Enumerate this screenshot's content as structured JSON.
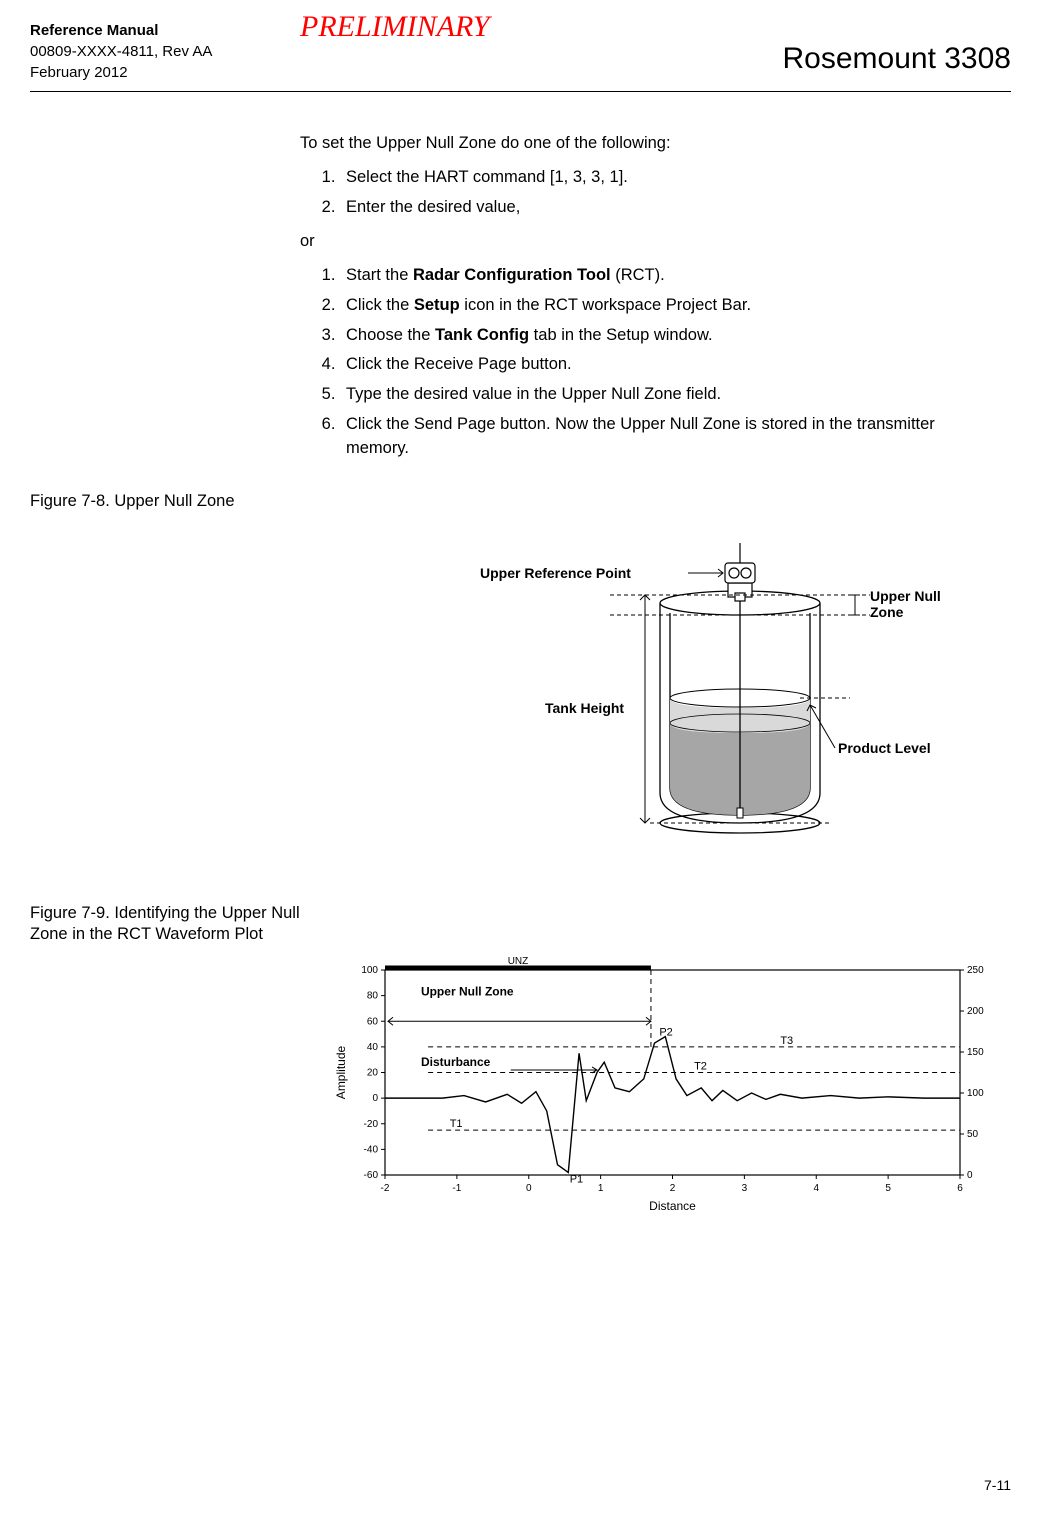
{
  "header": {
    "manual_title": "Reference Manual",
    "doc_number": "00809-XXXX-4811, Rev AA",
    "date": "February 2012",
    "watermark": "PRELIMINARY",
    "product": "Rosemount 3308"
  },
  "intro": "To set the Upper Null Zone do one of the following:",
  "stepsA": {
    "s1": "Select the HART command [1, 3, 3, 1].",
    "s2": "Enter the desired value,"
  },
  "or": "or",
  "stepsB": {
    "s1_pre": "Start the ",
    "s1_bold": "Radar Configuration Tool",
    "s1_post": " (RCT).",
    "s2_pre": "Click the ",
    "s2_bold": "Setup",
    "s2_post": " icon in the RCT workspace Project Bar.",
    "s3_pre": "Choose the ",
    "s3_bold": "Tank Config",
    "s3_post": " tab in the Setup window.",
    "s4": "Click the Receive Page button.",
    "s5": "Type the desired value in the Upper Null Zone field.",
    "s6": "Click the Send Page button. Now the Upper Null Zone is stored in the transmitter memory."
  },
  "fig78": {
    "caption": "Figure 7-8. Upper Null Zone",
    "labels": {
      "urp": "Upper Reference Point",
      "unz": "Upper Null\nZone",
      "th": "Tank Height",
      "pl": "Product Level"
    },
    "colors": {
      "stroke": "#000000",
      "dash": "#000000",
      "fill_light": "#d9d9d9",
      "fill_dark": "#a6a6a6",
      "bg": "#ffffff"
    }
  },
  "fig79": {
    "caption": "Figure 7-9. Identifying the Upper Null Zone in the RCT Waveform Plot",
    "type": "line",
    "xlabel": "Distance",
    "ylabel": "Amplitude",
    "xlim": [
      -2,
      6
    ],
    "xticks": [
      -2,
      -1,
      0,
      1,
      2,
      3,
      4,
      5,
      6
    ],
    "ylim_left": [
      -60,
      100
    ],
    "yticks_left": [
      -60,
      -40,
      -20,
      0,
      20,
      40,
      60,
      80,
      100
    ],
    "ylim_right": [
      0,
      250
    ],
    "yticks_right": [
      0,
      50,
      100,
      150,
      200,
      250
    ],
    "annotations": {
      "unz": "Upper Null Zone",
      "dist": "Disturbance",
      "unz_bar": "UNZ",
      "p1": "P1",
      "p2": "P2",
      "t1": "T1",
      "t2": "T2",
      "t3": "T3"
    },
    "threshold_levels": {
      "t1": -25,
      "t2": 20,
      "t3": 40
    },
    "peaks": {
      "p1_x": 0.5,
      "p1_y": -55,
      "p2_x": 1.9,
      "p2_y": 45
    },
    "unz_span": [
      -2,
      1.7
    ],
    "colors": {
      "stroke": "#000000",
      "waveform": "#000000",
      "dash": "#000000",
      "bg": "#ffffff",
      "font": "#000000"
    },
    "font_sizes": {
      "ticks": 10,
      "axis_label": 12,
      "annot_bold": 12,
      "annot_small": 11
    }
  },
  "page_number": "7-11"
}
